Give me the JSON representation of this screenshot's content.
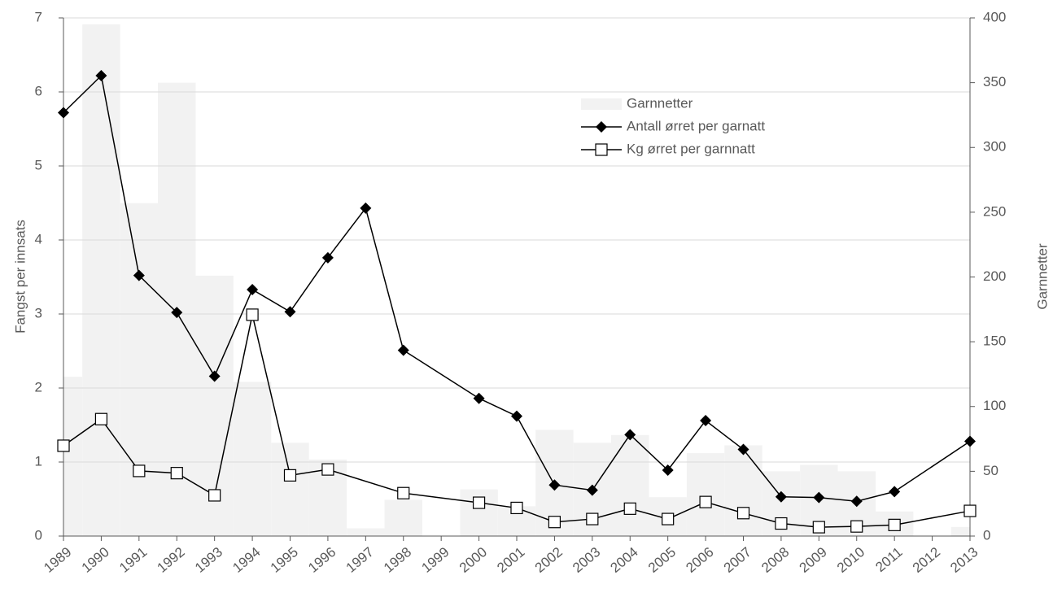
{
  "chart_data": {
    "type": "bar-line",
    "categories": [
      "1989",
      "1990",
      "1991",
      "1992",
      "1993",
      "1994",
      "1995",
      "1996",
      "1997",
      "1998",
      "1999",
      "2000",
      "2001",
      "2002",
      "2003",
      "2004",
      "2005",
      "2006",
      "2007",
      "2008",
      "2009",
      "2010",
      "2011",
      "2012",
      "2013"
    ],
    "series": [
      {
        "name": "Garnnetter",
        "type": "bar",
        "axis": "y2",
        "color": "#f2f2f2",
        "values": [
          123,
          395,
          257,
          350,
          201,
          119,
          72,
          59,
          6,
          28,
          0,
          36,
          23,
          82,
          72,
          78,
          30,
          64,
          70,
          50,
          55,
          50,
          19,
          0,
          7
        ]
      },
      {
        "name": "Antall ørret per garnatt",
        "type": "line",
        "marker": "diamond",
        "color": "#000000",
        "values": [
          5.72,
          6.22,
          3.52,
          3.02,
          2.16,
          3.33,
          3.03,
          3.76,
          4.43,
          2.51,
          null,
          1.86,
          1.62,
          0.69,
          0.62,
          1.37,
          0.89,
          1.56,
          1.17,
          0.53,
          0.52,
          0.47,
          0.6,
          null,
          1.28
        ]
      },
      {
        "name": "Kg ørret per garnnatt",
        "type": "line",
        "marker": "square",
        "color": "#000000",
        "values": [
          1.22,
          1.58,
          0.88,
          0.85,
          0.55,
          2.99,
          0.82,
          0.9,
          null,
          0.58,
          null,
          0.45,
          0.38,
          0.19,
          0.23,
          0.37,
          0.23,
          0.46,
          0.31,
          0.17,
          0.12,
          0.13,
          0.15,
          null,
          0.34
        ]
      }
    ],
    "y_label": "Fangst per innsats",
    "y2_label": "Garnnetter",
    "ylim": [
      0,
      7
    ],
    "yticks": [
      0,
      1,
      2,
      3,
      4,
      5,
      6,
      7
    ],
    "y2lim": [
      0,
      400
    ],
    "y2ticks": [
      0,
      50,
      100,
      150,
      200,
      250,
      300,
      350,
      400
    ],
    "grid": true,
    "span_gaps": true,
    "legend": "upper right"
  }
}
